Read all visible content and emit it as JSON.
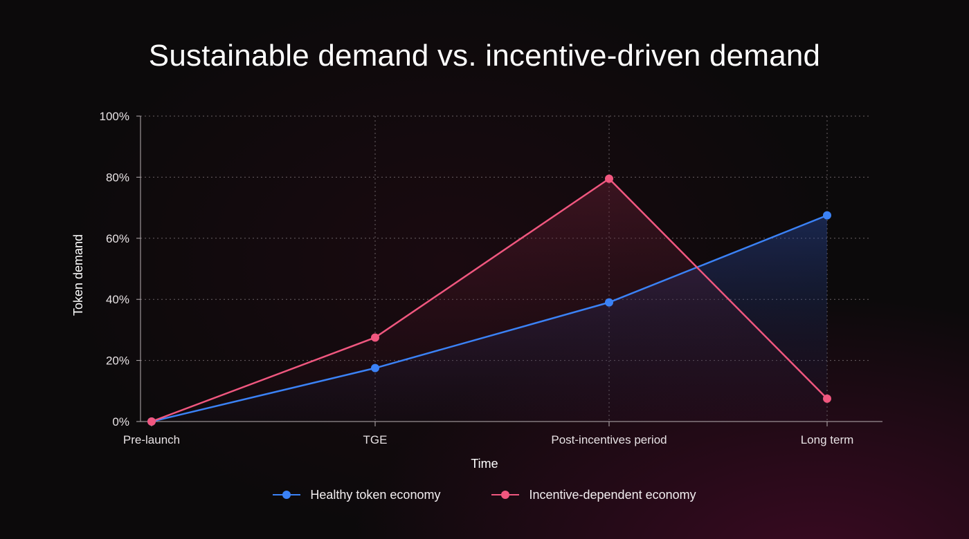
{
  "chart_data": {
    "type": "line",
    "title": "Sustainable demand vs. incentive-driven demand",
    "xlabel": "Time",
    "ylabel": "Token demand",
    "categories": [
      "Pre-launch",
      "TGE",
      "Post-incentives period",
      "Long term"
    ],
    "yticks": [
      "0%",
      "20%",
      "40%",
      "60%",
      "80%",
      "100%"
    ],
    "ylim": [
      0,
      100
    ],
    "grid": true,
    "legend_position": "bottom",
    "series": [
      {
        "name": "Healthy token economy",
        "values": [
          0,
          17.5,
          39,
          67.5
        ],
        "color": "#3b82f6"
      },
      {
        "name": "Incentive-dependent economy",
        "values": [
          0,
          27.5,
          79.5,
          7.5
        ],
        "color": "#f0577f"
      }
    ]
  }
}
